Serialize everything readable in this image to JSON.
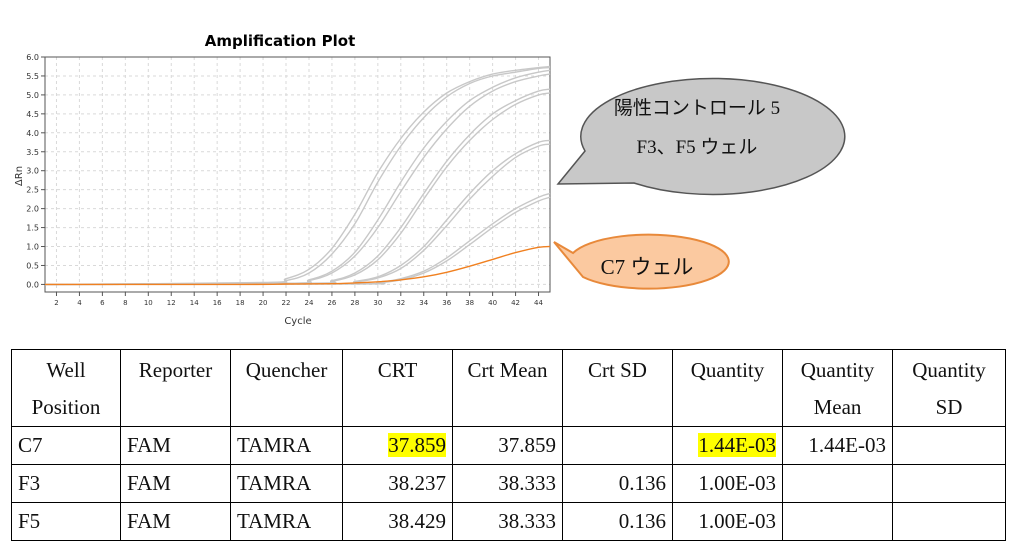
{
  "chart_data": {
    "type": "line",
    "title": "Amplification Plot",
    "xlabel": "Cycle",
    "ylabel": "ΔRn",
    "xlim": [
      1,
      45
    ],
    "ylim": [
      -0.2,
      6.0
    ],
    "x_ticks": [
      2,
      4,
      6,
      8,
      10,
      12,
      14,
      16,
      18,
      20,
      22,
      24,
      26,
      28,
      30,
      32,
      34,
      36,
      38,
      40,
      42,
      44
    ],
    "y_ticks": [
      "0.0",
      "0.5",
      "1.0",
      "1.5",
      "2.0",
      "2.5",
      "3.0",
      "3.5",
      "4.0",
      "4.5",
      "5.0",
      "5.5",
      "6.0"
    ],
    "grid": true,
    "series": [
      {
        "color": "#c8c8c8",
        "x": [
          1,
          20,
          22,
          24,
          26,
          28,
          30,
          32,
          34,
          36,
          38,
          40,
          42,
          44,
          45
        ],
        "values": [
          0.0,
          0.05,
          0.15,
          0.4,
          0.95,
          1.85,
          2.95,
          3.85,
          4.55,
          5.05,
          5.35,
          5.55,
          5.65,
          5.72,
          5.75
        ]
      },
      {
        "color": "#c8c8c8",
        "x": [
          1,
          20,
          22,
          24,
          26,
          28,
          30,
          32,
          34,
          36,
          38,
          40,
          42,
          44,
          45
        ],
        "values": [
          0.0,
          0.03,
          0.1,
          0.3,
          0.8,
          1.6,
          2.7,
          3.65,
          4.4,
          4.95,
          5.3,
          5.5,
          5.6,
          5.7,
          5.72
        ]
      },
      {
        "color": "#c8c8c8",
        "x": [
          1,
          22,
          24,
          26,
          28,
          30,
          32,
          34,
          36,
          38,
          40,
          42,
          44,
          45
        ],
        "values": [
          0.0,
          0.03,
          0.12,
          0.35,
          0.85,
          1.7,
          2.7,
          3.6,
          4.3,
          4.85,
          5.2,
          5.45,
          5.6,
          5.65
        ]
      },
      {
        "color": "#c8c8c8",
        "x": [
          1,
          22,
          24,
          26,
          28,
          30,
          32,
          34,
          36,
          38,
          40,
          42,
          44,
          45
        ],
        "values": [
          0.0,
          0.02,
          0.1,
          0.3,
          0.75,
          1.5,
          2.45,
          3.35,
          4.1,
          4.7,
          5.1,
          5.35,
          5.5,
          5.55
        ]
      },
      {
        "color": "#c8c8c8",
        "x": [
          1,
          24,
          26,
          28,
          30,
          32,
          34,
          36,
          38,
          40,
          42,
          44,
          45
        ],
        "values": [
          0.0,
          0.03,
          0.1,
          0.3,
          0.75,
          1.5,
          2.4,
          3.25,
          3.95,
          4.5,
          4.85,
          5.1,
          5.15
        ]
      },
      {
        "color": "#c8c8c8",
        "x": [
          1,
          24,
          26,
          28,
          30,
          32,
          34,
          36,
          38,
          40,
          42,
          44,
          45
        ],
        "values": [
          0.0,
          0.02,
          0.08,
          0.25,
          0.65,
          1.35,
          2.25,
          3.1,
          3.8,
          4.35,
          4.75,
          5.0,
          5.05
        ]
      },
      {
        "color": "#c8c8c8",
        "x": [
          1,
          26,
          28,
          30,
          32,
          34,
          36,
          38,
          40,
          42,
          44,
          45
        ],
        "values": [
          0.0,
          0.02,
          0.08,
          0.2,
          0.5,
          1.0,
          1.7,
          2.4,
          3.0,
          3.45,
          3.75,
          3.8
        ]
      },
      {
        "color": "#c8c8c8",
        "x": [
          1,
          26,
          28,
          30,
          32,
          34,
          36,
          38,
          40,
          42,
          44,
          45
        ],
        "values": [
          0.0,
          0.02,
          0.06,
          0.17,
          0.42,
          0.9,
          1.55,
          2.25,
          2.85,
          3.35,
          3.65,
          3.7
        ]
      },
      {
        "color": "#c8c8c8",
        "x": [
          1,
          28,
          30,
          32,
          34,
          36,
          38,
          40,
          42,
          44,
          45
        ],
        "values": [
          0.0,
          0.02,
          0.05,
          0.15,
          0.35,
          0.7,
          1.15,
          1.6,
          2.0,
          2.3,
          2.4
        ]
      },
      {
        "color": "#c8c8c8",
        "x": [
          1,
          28,
          30,
          32,
          34,
          36,
          38,
          40,
          42,
          44,
          45
        ],
        "values": [
          0.0,
          0.01,
          0.04,
          0.12,
          0.3,
          0.62,
          1.05,
          1.5,
          1.9,
          2.2,
          2.3
        ]
      },
      {
        "color": "#f08020",
        "x": [
          1,
          18,
          22,
          26,
          28,
          30,
          32,
          34,
          36,
          38,
          40,
          42,
          44,
          45
        ],
        "values": [
          0.0,
          0.0,
          0.01,
          0.02,
          0.04,
          0.07,
          0.12,
          0.2,
          0.32,
          0.48,
          0.66,
          0.84,
          0.98,
          1.0
        ]
      }
    ]
  },
  "callouts": {
    "positive_line1": "陽性コントロール 5",
    "positive_line2": "F3、F5 ウェル",
    "c7_label": "C7 ウェル",
    "positive_fill": "#c8c8c8",
    "c7_fill": "#fbc9a0",
    "c7_stroke": "#e8893a"
  },
  "table": {
    "headers": [
      [
        "Well",
        "Position"
      ],
      [
        "Reporter"
      ],
      [
        "Quencher"
      ],
      [
        "CRT"
      ],
      [
        "Crt Mean"
      ],
      [
        "Crt SD"
      ],
      [
        "Quantity"
      ],
      [
        "Quantity",
        "Mean"
      ],
      [
        "Quantity",
        "SD"
      ]
    ],
    "rows": [
      {
        "well": "C7",
        "reporter": "FAM",
        "quencher": "TAMRA",
        "crt": "37.859",
        "crt_mean": "37.859",
        "crt_sd": "",
        "quantity": "1.44E-03",
        "quantity_mean": "1.44E-03",
        "quantity_sd": ""
      },
      {
        "well": "F3",
        "reporter": "FAM",
        "quencher": "TAMRA",
        "crt": "38.237",
        "crt_mean": "38.333",
        "crt_sd": "0.136",
        "quantity": "1.00E-03",
        "quantity_mean": "",
        "quantity_sd": ""
      },
      {
        "well": "F5",
        "reporter": "FAM",
        "quencher": "TAMRA",
        "crt": "38.429",
        "crt_mean": "38.333",
        "crt_sd": "0.136",
        "quantity": "1.00E-03",
        "quantity_mean": "",
        "quantity_sd": ""
      }
    ],
    "highlight_color": "#ffff00"
  }
}
